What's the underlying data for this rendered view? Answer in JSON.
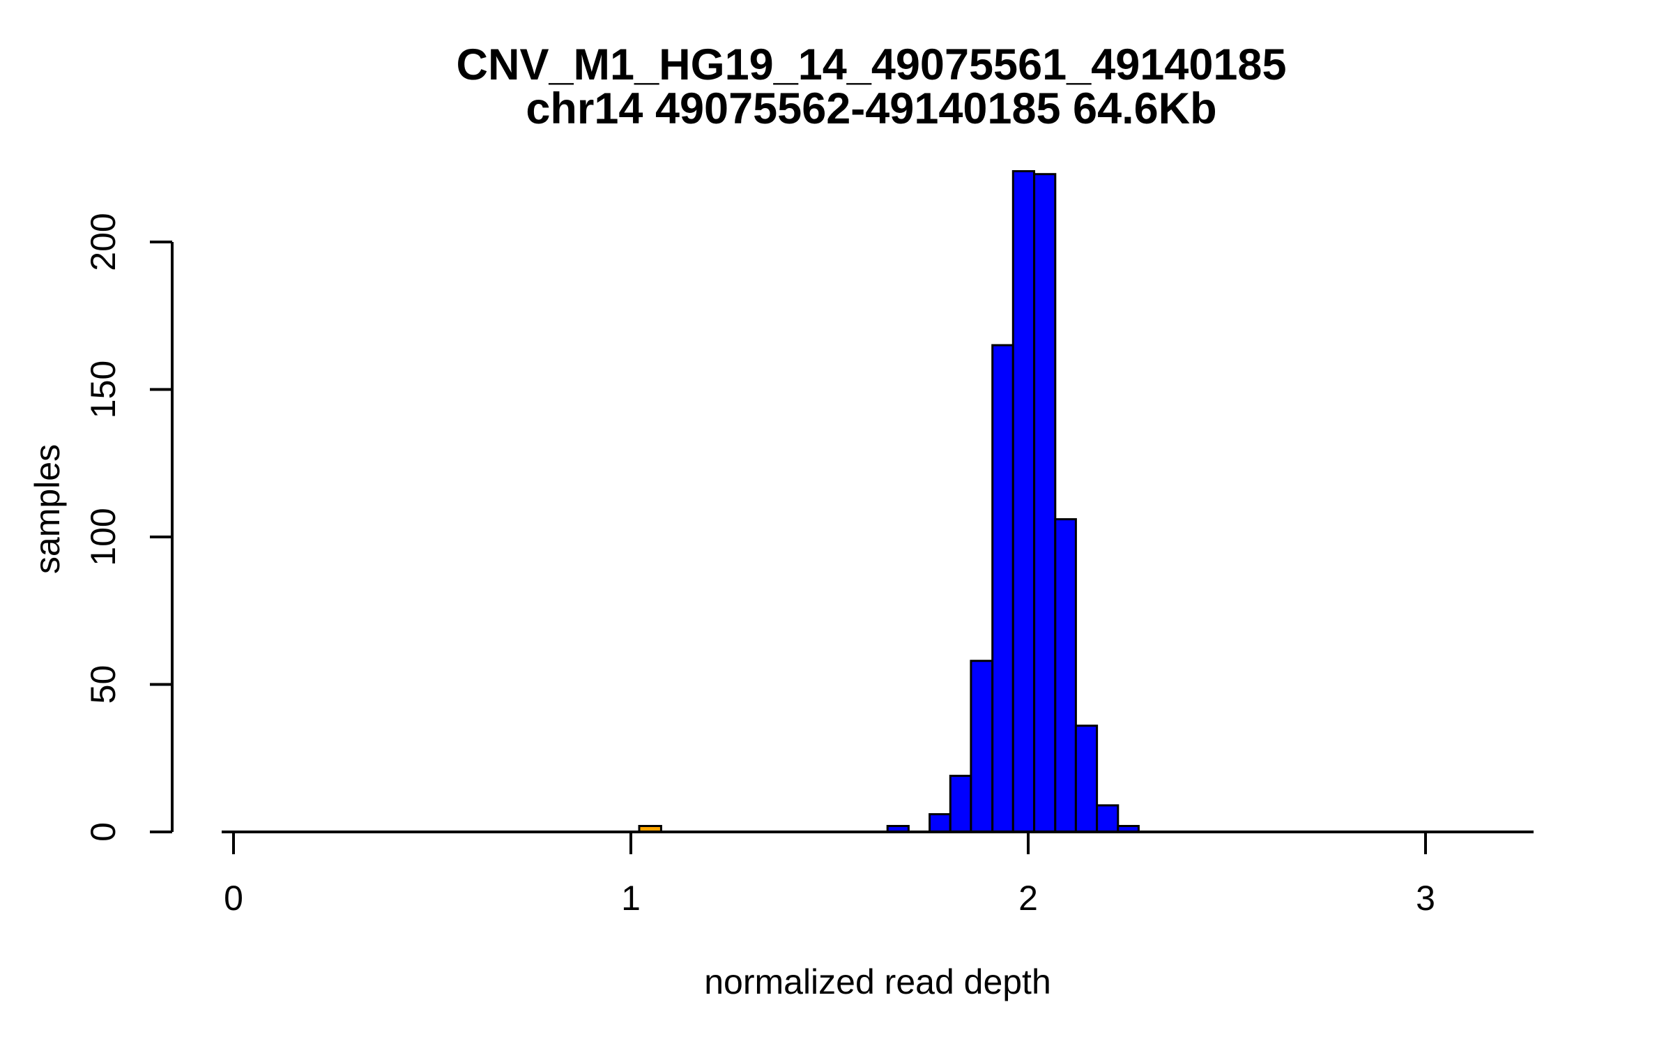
{
  "figure": {
    "title": "CNV_M1_HG19_14_49075561_49140185",
    "subtitle": "chr14 49075562-49140185 64.6Kb",
    "xlabel": "normalized read depth",
    "ylabel": "samples"
  },
  "chart_data": {
    "type": "bar",
    "subtype": "histogram",
    "title": "CNV_M1_HG19_14_49075561_49140185",
    "subtitle": "chr14 49075562-49140185 64.6Kb",
    "xlabel": "normalized read depth",
    "ylabel": "samples",
    "xlim": [
      -0.03,
      3.27
    ],
    "ylim": [
      0,
      229
    ],
    "x_ticks": [
      0,
      1,
      2,
      3
    ],
    "y_ticks": [
      0,
      50,
      100,
      150,
      200
    ],
    "grid": false,
    "legend": false,
    "colors": {
      "bar_fill": "#0000ff",
      "bar_border": "#000000",
      "highlight_fill": "#ffa500",
      "axis": "#000000",
      "text": "#000000"
    },
    "bins": [
      {
        "x0": 1.021,
        "x1": 1.076,
        "count": 2,
        "color": "#ffa500"
      },
      {
        "x0": 1.646,
        "x1": 1.699,
        "count": 2,
        "color": "#0000ff"
      },
      {
        "x0": 1.699,
        "x1": 1.752,
        "count": 0,
        "color": "#0000ff"
      },
      {
        "x0": 1.752,
        "x1": 1.804,
        "count": 6,
        "color": "#0000ff"
      },
      {
        "x0": 1.804,
        "x1": 1.856,
        "count": 19,
        "color": "#0000ff"
      },
      {
        "x0": 1.856,
        "x1": 1.91,
        "count": 58,
        "color": "#0000ff"
      },
      {
        "x0": 1.91,
        "x1": 1.962,
        "count": 165,
        "color": "#0000ff"
      },
      {
        "x0": 1.962,
        "x1": 2.015,
        "count": 224,
        "color": "#0000ff"
      },
      {
        "x0": 2.015,
        "x1": 2.068,
        "count": 223,
        "color": "#0000ff"
      },
      {
        "x0": 2.068,
        "x1": 2.12,
        "count": 106,
        "color": "#0000ff"
      },
      {
        "x0": 2.12,
        "x1": 2.173,
        "count": 36,
        "color": "#0000ff"
      },
      {
        "x0": 2.173,
        "x1": 2.226,
        "count": 9,
        "color": "#0000ff"
      },
      {
        "x0": 2.226,
        "x1": 2.278,
        "count": 2,
        "color": "#0000ff"
      }
    ]
  }
}
